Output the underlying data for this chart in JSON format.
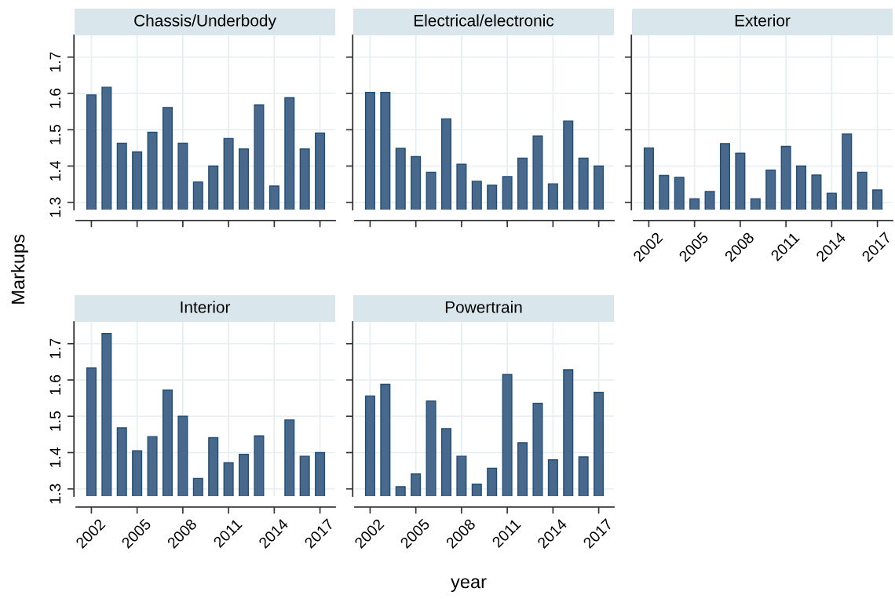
{
  "chart_data": [
    {
      "type": "bar",
      "title": "Chassis/Underbody",
      "ylabel": "Markups",
      "x": [
        2002,
        2003,
        2004,
        2005,
        2006,
        2007,
        2008,
        2009,
        2010,
        2011,
        2012,
        2013,
        2014,
        2015,
        2016,
        2017
      ],
      "values": [
        1.596,
        1.617,
        1.463,
        1.439,
        1.493,
        1.561,
        1.463,
        1.356,
        1.4,
        1.476,
        1.447,
        1.568,
        1.345,
        1.588,
        1.447,
        1.491
      ],
      "color": "#48698b",
      "xlim": [
        2001,
        2018
      ],
      "xticks": [
        2002,
        2005,
        2008,
        2011,
        2014,
        2017
      ],
      "ylim": [
        1.28,
        1.76
      ],
      "yticks": [
        1.3,
        1.4,
        1.5,
        1.6,
        1.7
      ],
      "grid": true,
      "tick_labels": "y"
    },
    {
      "type": "bar",
      "title": "Electrical/electronic",
      "x": [
        2002,
        2003,
        2004,
        2005,
        2006,
        2007,
        2008,
        2009,
        2010,
        2011,
        2012,
        2013,
        2014,
        2015,
        2016,
        2017
      ],
      "values": [
        1.603,
        1.603,
        1.449,
        1.426,
        1.383,
        1.53,
        1.405,
        1.358,
        1.347,
        1.371,
        1.422,
        1.483,
        1.351,
        1.524,
        1.422,
        1.4
      ],
      "color": "#48698b",
      "xlim": [
        2001,
        2018
      ],
      "xticks": [
        2002,
        2005,
        2008,
        2011,
        2014,
        2017
      ],
      "ylim": [
        1.28,
        1.76
      ],
      "yticks": [
        1.3,
        1.4,
        1.5,
        1.6,
        1.7
      ],
      "grid": true,
      "tick_labels": false
    },
    {
      "type": "bar",
      "title": "Exterior",
      "x": [
        2002,
        2003,
        2004,
        2005,
        2006,
        2007,
        2008,
        2009,
        2010,
        2011,
        2012,
        2013,
        2014,
        2015,
        2016,
        2017
      ],
      "values": [
        1.45,
        1.374,
        1.369,
        1.31,
        1.33,
        1.462,
        1.435,
        1.31,
        1.389,
        1.454,
        1.4,
        1.375,
        1.325,
        1.488,
        1.383,
        1.334
      ],
      "color": "#48698b",
      "xlim": [
        2001,
        2018
      ],
      "xticks": [
        2002,
        2005,
        2008,
        2011,
        2014,
        2017
      ],
      "ylim": [
        1.28,
        1.76
      ],
      "yticks": [
        1.3,
        1.4,
        1.5,
        1.6,
        1.7
      ],
      "grid": true,
      "tick_labels": "x"
    },
    {
      "type": "bar",
      "title": "Interior",
      "x": [
        2002,
        2003,
        2004,
        2005,
        2006,
        2007,
        2008,
        2009,
        2010,
        2011,
        2012,
        2013,
        2014,
        2015,
        2016,
        2017
      ],
      "values": [
        1.633,
        1.728,
        1.468,
        1.405,
        1.444,
        1.572,
        1.5,
        1.329,
        1.441,
        1.372,
        1.395,
        1.446,
        null,
        1.49,
        1.39,
        1.4
      ],
      "color": "#48698b",
      "xlim": [
        2001,
        2018
      ],
      "xticks": [
        2002,
        2005,
        2008,
        2011,
        2014,
        2017
      ],
      "ylim": [
        1.28,
        1.76
      ],
      "yticks": [
        1.3,
        1.4,
        1.5,
        1.6,
        1.7
      ],
      "grid": true
    },
    {
      "type": "bar",
      "title": "Powertrain",
      "xlabel": "year",
      "x": [
        2002,
        2003,
        2004,
        2005,
        2006,
        2007,
        2008,
        2009,
        2010,
        2011,
        2012,
        2013,
        2014,
        2015,
        2016,
        2017
      ],
      "values": [
        1.556,
        1.588,
        1.306,
        1.341,
        1.542,
        1.466,
        1.39,
        1.313,
        1.357,
        1.615,
        1.427,
        1.536,
        1.38,
        1.628,
        1.388,
        1.566
      ],
      "color": "#48698b",
      "xlim": [
        2001,
        2018
      ],
      "xticks": [
        2002,
        2005,
        2008,
        2011,
        2014,
        2017
      ],
      "ylim": [
        1.28,
        1.76
      ],
      "yticks": [
        1.3,
        1.4,
        1.5,
        1.6,
        1.7
      ],
      "grid": true,
      "tick_labels": "x"
    }
  ]
}
